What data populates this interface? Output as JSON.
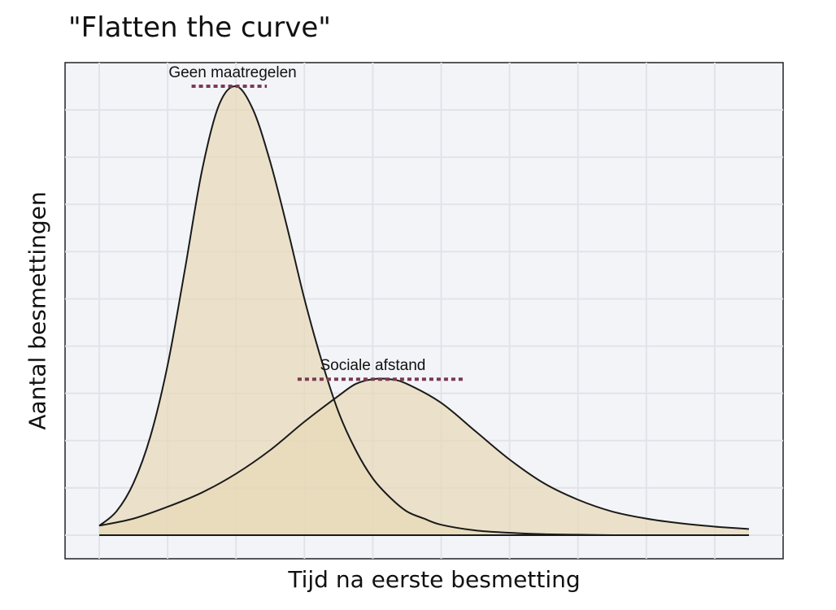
{
  "chart_data": {
    "type": "area",
    "title": "\"Flatten the curve\"",
    "xlabel": "Tijd na eerste besmetting",
    "ylabel": "Aantal besmettingen",
    "xlim": [
      -0.5,
      10
    ],
    "ylim": [
      -0.5,
      10
    ],
    "grid": true,
    "series": [
      {
        "name": "Geen maatregelen",
        "x": [
          0,
          0.25,
          0.5,
          0.75,
          1.0,
          1.25,
          1.5,
          1.75,
          2.0,
          2.25,
          2.5,
          2.75,
          3.0,
          3.25,
          3.5,
          3.75,
          4.0,
          4.25,
          4.5,
          4.75,
          5.0,
          5.5,
          6.0,
          6.5,
          7.0,
          7.5,
          8.0,
          8.5,
          9.0,
          9.5
        ],
        "y": [
          0.2,
          0.5,
          1.1,
          2.1,
          3.6,
          5.6,
          7.7,
          9.1,
          9.5,
          9.0,
          7.9,
          6.5,
          5.0,
          3.7,
          2.6,
          1.8,
          1.2,
          0.8,
          0.5,
          0.35,
          0.22,
          0.1,
          0.05,
          0.02,
          0.01,
          0.0,
          0.0,
          0.0,
          0.0,
          0.0
        ],
        "color": "#e8d9b8"
      },
      {
        "name": "Sociale afstand",
        "x": [
          0,
          0.5,
          1.0,
          1.5,
          2.0,
          2.5,
          3.0,
          3.5,
          3.75,
          4.0,
          4.25,
          4.5,
          5.0,
          5.5,
          6.0,
          6.5,
          7.0,
          7.5,
          8.0,
          8.5,
          9.0,
          9.5
        ],
        "y": [
          0.2,
          0.35,
          0.6,
          0.9,
          1.3,
          1.8,
          2.4,
          2.95,
          3.2,
          3.3,
          3.3,
          3.2,
          2.8,
          2.2,
          1.6,
          1.1,
          0.75,
          0.5,
          0.35,
          0.25,
          0.18,
          0.13
        ],
        "color": "#e8d9b8"
      }
    ],
    "annotations": [
      {
        "text": "Geen maatregelen",
        "x": 1.95,
        "y": 9.5,
        "line_x": [
          1.35,
          2.45
        ]
      },
      {
        "text": "Sociale afstand",
        "x": 4.0,
        "y": 3.3,
        "line_x": [
          2.9,
          5.35
        ]
      }
    ],
    "colors": {
      "plot_bg": "#f3f4f8",
      "grid": "#e2e3e9",
      "curve": "#1a1a1a",
      "fill": "#e8d9b8",
      "overlap": "#e3cb96",
      "marker_line": "#7a3a52"
    }
  }
}
